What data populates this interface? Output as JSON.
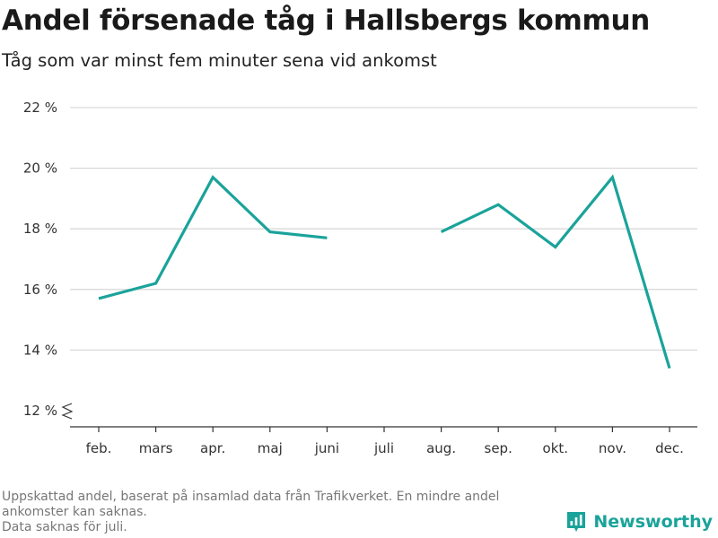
{
  "header": {
    "title": "Andel försenade tåg i Hallsbergs kommun",
    "subtitle": "Tåg som var minst fem minuter sena vid ankomst"
  },
  "chart_data": {
    "type": "line",
    "title": "Andel försenade tåg i Hallsbergs kommun",
    "subtitle": "Tåg som var minst fem minuter sena vid ankomst",
    "xlabel": "",
    "ylabel": "",
    "categories": [
      "feb.",
      "mars",
      "apr.",
      "maj",
      "juni",
      "juli",
      "aug.",
      "sep.",
      "okt.",
      "nov.",
      "dec."
    ],
    "series": [
      {
        "values": [
          15.7,
          16.2,
          19.7,
          17.9,
          17.7,
          null,
          17.9,
          18.8,
          17.4,
          19.7,
          13.4
        ]
      }
    ],
    "yticks": [
      "12 %",
      "14 %",
      "16 %",
      "18 %",
      "20 %",
      "22 %"
    ],
    "ylim": [
      12,
      22
    ],
    "y_axis_break": true,
    "grid": true,
    "color": "#1aa39a"
  },
  "footer": {
    "notes": [
      "Uppskattad andel, baserat på insamlad data från Trafikverket. En mindre andel ankomster kan saknas.",
      "Data saknas för juli."
    ],
    "brand": "Newsworthy"
  }
}
